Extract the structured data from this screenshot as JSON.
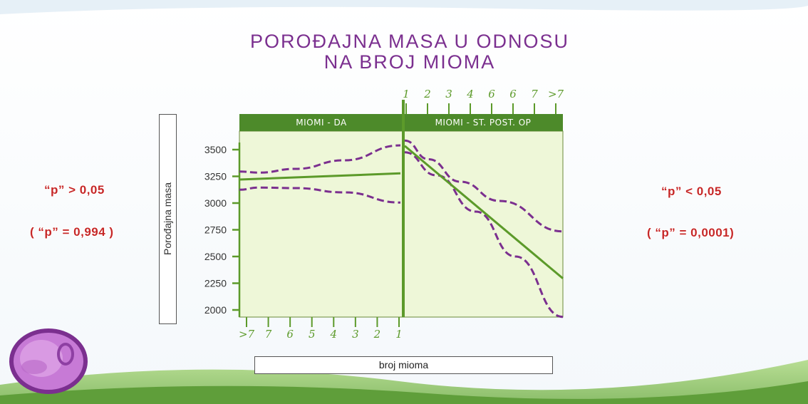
{
  "title": {
    "line1": "POROĐAJNA  MASA U  ODNOSU",
    "line2": "NA  BROJ  MIOMA"
  },
  "left_stats": {
    "p_compare": "“p”  >  0,05",
    "p_value": "( “p” =  0,994  )"
  },
  "right_stats": {
    "p_compare": "“p”  <  0,05",
    "p_value": "( “p” =  0,0001)"
  },
  "colors": {
    "title": "#7b2f8f",
    "plot_bg": "#eef7d8",
    "line": "#5c9a2a",
    "confidence": "#7b2f8f",
    "pvalue": "#c62828",
    "header": "#4d8a2a"
  },
  "chart_data": {
    "type": "line",
    "ylabel": "Porođajna masa",
    "xlabel": "broj mioma",
    "yticks": [
      3500,
      3250,
      3000,
      2750,
      2500,
      2250,
      2000
    ],
    "ylim": [
      2000,
      3580
    ],
    "panels": [
      {
        "name": "MIOMI  -  DA",
        "x_ticks": [
          ">7",
          "7",
          "6",
          "5",
          "4",
          "3",
          "2",
          "1"
        ],
        "fit": [
          3220,
          3278
        ],
        "upper_ci": [
          [
            0,
            3295
          ],
          [
            0.12,
            3285
          ],
          [
            0.35,
            3320
          ],
          [
            0.65,
            3400
          ],
          [
            1,
            3540
          ]
        ],
        "lower_ci": [
          [
            0,
            3125
          ],
          [
            0.12,
            3145
          ],
          [
            0.35,
            3140
          ],
          [
            0.65,
            3100
          ],
          [
            1,
            3005
          ]
        ]
      },
      {
        "name": "MIOMI  -  ST. POST. OP",
        "x_ticks": [
          "1",
          "2",
          "3",
          "4",
          "6",
          "6",
          "7",
          ">7"
        ],
        "fit": [
          3535,
          2295
        ],
        "upper_ci": [
          [
            0,
            3585
          ],
          [
            0.15,
            3410
          ],
          [
            0.35,
            3200
          ],
          [
            0.6,
            3020
          ],
          [
            1,
            2735
          ]
        ],
        "lower_ci": [
          [
            0,
            3475
          ],
          [
            0.2,
            3260
          ],
          [
            0.45,
            2920
          ],
          [
            0.7,
            2500
          ],
          [
            1,
            1935
          ]
        ]
      }
    ]
  }
}
